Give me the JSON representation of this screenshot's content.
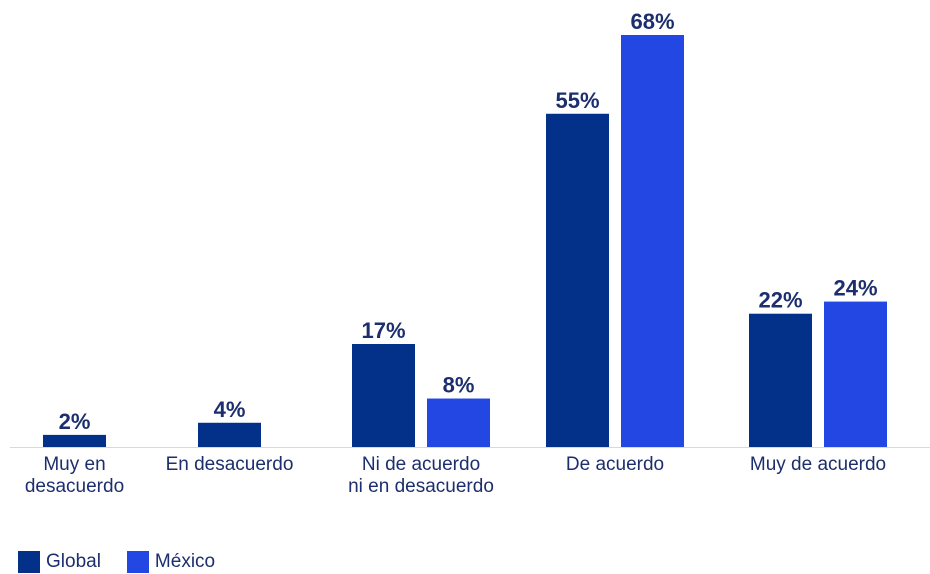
{
  "chart_data": {
    "type": "bar",
    "categories": [
      [
        "Muy en",
        "desacuerdo"
      ],
      [
        "En desacuerdo"
      ],
      [
        "Ni de acuerdo",
        "ni en desacuerdo"
      ],
      [
        "De acuerdo"
      ],
      [
        "Muy de acuerdo"
      ]
    ],
    "series": [
      {
        "name": "Global",
        "color": "#03318a",
        "values": [
          2,
          4,
          17,
          55,
          22
        ],
        "labels": [
          "2%",
          "4%",
          "17%",
          "55%",
          "22%"
        ]
      },
      {
        "name": "México",
        "color": "#2347e3",
        "values": [
          null,
          null,
          8,
          68,
          24
        ],
        "labels": [
          "",
          "",
          "8%",
          "68%",
          "24%"
        ]
      }
    ],
    "ylim": [
      0,
      68
    ],
    "grid": false,
    "legend": "bottom-left",
    "colors": {
      "label": "#1c2e6e",
      "axis": "#d9d9d9"
    }
  }
}
